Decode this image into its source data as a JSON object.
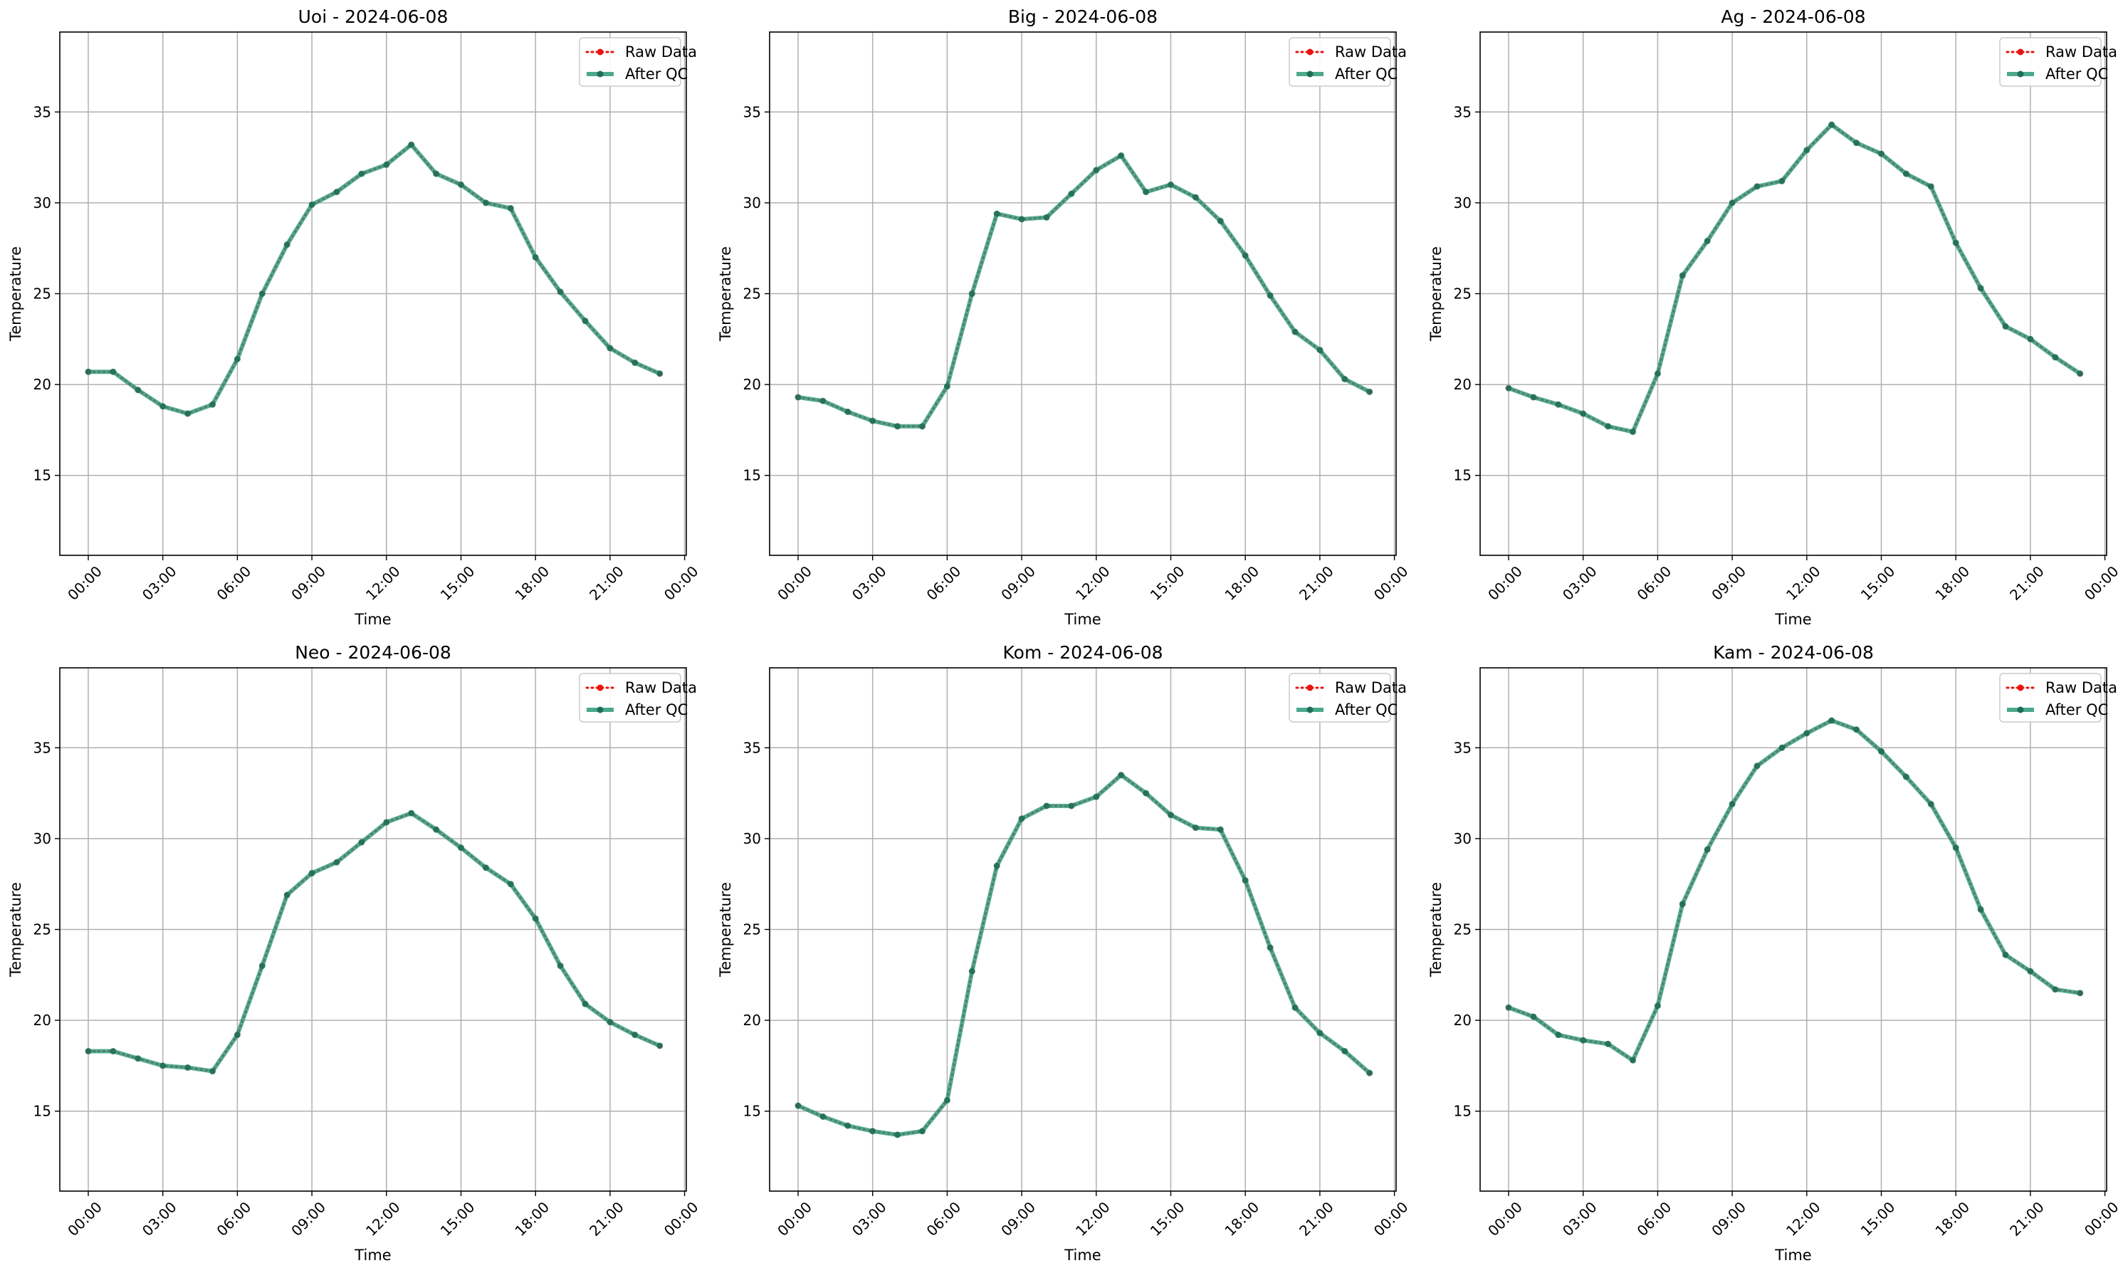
{
  "chart_data": [
    {
      "type": "line",
      "title": "Uoi - 2024-06-08",
      "xlabel": "Time",
      "ylabel": "Temperature",
      "x": [
        "00:00",
        "01:00",
        "02:00",
        "03:00",
        "04:00",
        "05:00",
        "06:00",
        "07:00",
        "08:00",
        "09:00",
        "10:00",
        "11:00",
        "12:00",
        "13:00",
        "14:00",
        "15:00",
        "16:00",
        "17:00",
        "18:00",
        "19:00",
        "20:00",
        "21:00",
        "22:00",
        "23:00"
      ],
      "series": [
        {
          "name": "Raw Data",
          "values": [
            20.7,
            20.7,
            19.7,
            18.8,
            18.4,
            18.9,
            21.4,
            25.0,
            27.7,
            29.9,
            30.6,
            31.6,
            32.1,
            33.2,
            31.6,
            31.0,
            30.0,
            29.7,
            27.0,
            25.1,
            23.5,
            22.0,
            21.2,
            20.6
          ]
        },
        {
          "name": "After QC",
          "values": [
            20.7,
            20.7,
            19.7,
            18.8,
            18.4,
            18.9,
            21.4,
            25.0,
            27.7,
            29.9,
            30.6,
            31.6,
            32.1,
            33.2,
            31.6,
            31.0,
            30.0,
            29.7,
            27.0,
            25.1,
            23.5,
            22.0,
            21.2,
            20.6
          ]
        }
      ],
      "ylim": [
        10.6,
        39.4
      ],
      "xticks": [
        "00:00",
        "03:00",
        "06:00",
        "09:00",
        "12:00",
        "15:00",
        "18:00",
        "21:00",
        "00:00"
      ],
      "yticks": [
        15,
        20,
        25,
        30,
        35
      ],
      "grid": true,
      "legend": "top-right"
    },
    {
      "type": "line",
      "title": "Big - 2024-06-08",
      "xlabel": "Time",
      "ylabel": "Temperature",
      "x": [
        "00:00",
        "01:00",
        "02:00",
        "03:00",
        "04:00",
        "05:00",
        "06:00",
        "07:00",
        "08:00",
        "09:00",
        "10:00",
        "11:00",
        "12:00",
        "13:00",
        "14:00",
        "15:00",
        "16:00",
        "17:00",
        "18:00",
        "19:00",
        "20:00",
        "21:00",
        "22:00",
        "23:00"
      ],
      "series": [
        {
          "name": "Raw Data",
          "values": [
            19.3,
            19.1,
            18.5,
            18.0,
            17.7,
            17.7,
            19.9,
            25.0,
            29.4,
            29.1,
            29.2,
            30.5,
            31.8,
            32.6,
            30.6,
            31.0,
            30.3,
            29.0,
            27.1,
            24.9,
            22.9,
            21.9,
            20.3,
            19.6
          ]
        },
        {
          "name": "After QC",
          "values": [
            19.3,
            19.1,
            18.5,
            18.0,
            17.7,
            17.7,
            19.9,
            25.0,
            29.4,
            29.1,
            29.2,
            30.5,
            31.8,
            32.6,
            30.6,
            31.0,
            30.3,
            29.0,
            27.1,
            24.9,
            22.9,
            21.9,
            20.3,
            19.6
          ]
        }
      ],
      "ylim": [
        10.6,
        39.4
      ],
      "xticks": [
        "00:00",
        "03:00",
        "06:00",
        "09:00",
        "12:00",
        "15:00",
        "18:00",
        "21:00",
        "00:00"
      ],
      "yticks": [
        15,
        20,
        25,
        30,
        35
      ],
      "grid": true,
      "legend": "top-right"
    },
    {
      "type": "line",
      "title": "Ag - 2024-06-08",
      "xlabel": "Time",
      "ylabel": "Temperature",
      "x": [
        "00:00",
        "01:00",
        "02:00",
        "03:00",
        "04:00",
        "05:00",
        "06:00",
        "07:00",
        "08:00",
        "09:00",
        "10:00",
        "11:00",
        "12:00",
        "13:00",
        "14:00",
        "15:00",
        "16:00",
        "17:00",
        "18:00",
        "19:00",
        "20:00",
        "21:00",
        "22:00",
        "23:00"
      ],
      "series": [
        {
          "name": "Raw Data",
          "values": [
            19.8,
            19.3,
            18.9,
            18.4,
            17.7,
            17.4,
            20.6,
            26.0,
            27.9,
            30.0,
            30.9,
            31.2,
            32.9,
            34.3,
            33.3,
            32.7,
            31.6,
            30.9,
            27.8,
            25.3,
            23.2,
            22.5,
            21.5,
            20.6
          ]
        },
        {
          "name": "After QC",
          "values": [
            19.8,
            19.3,
            18.9,
            18.4,
            17.7,
            17.4,
            20.6,
            26.0,
            27.9,
            30.0,
            30.9,
            31.2,
            32.9,
            34.3,
            33.3,
            32.7,
            31.6,
            30.9,
            27.8,
            25.3,
            23.2,
            22.5,
            21.5,
            20.6
          ]
        }
      ],
      "ylim": [
        10.6,
        39.4
      ],
      "xticks": [
        "00:00",
        "03:00",
        "06:00",
        "09:00",
        "12:00",
        "15:00",
        "18:00",
        "21:00",
        "00:00"
      ],
      "yticks": [
        15,
        20,
        25,
        30,
        35
      ],
      "grid": true,
      "legend": "top-right"
    },
    {
      "type": "line",
      "title": "Neo - 2024-06-08",
      "xlabel": "Time",
      "ylabel": "Temperature",
      "x": [
        "00:00",
        "01:00",
        "02:00",
        "03:00",
        "04:00",
        "05:00",
        "06:00",
        "07:00",
        "08:00",
        "09:00",
        "10:00",
        "11:00",
        "12:00",
        "13:00",
        "14:00",
        "15:00",
        "16:00",
        "17:00",
        "18:00",
        "19:00",
        "20:00",
        "21:00",
        "22:00",
        "23:00"
      ],
      "series": [
        {
          "name": "Raw Data",
          "values": [
            18.3,
            18.3,
            17.9,
            17.5,
            17.4,
            17.2,
            19.2,
            23.0,
            26.9,
            28.1,
            28.7,
            29.8,
            30.9,
            31.4,
            30.5,
            29.5,
            28.4,
            27.5,
            25.6,
            23.0,
            20.9,
            19.9,
            19.2,
            18.6
          ]
        },
        {
          "name": "After QC",
          "values": [
            18.3,
            18.3,
            17.9,
            17.5,
            17.4,
            17.2,
            19.2,
            23.0,
            26.9,
            28.1,
            28.7,
            29.8,
            30.9,
            31.4,
            30.5,
            29.5,
            28.4,
            27.5,
            25.6,
            23.0,
            20.9,
            19.9,
            19.2,
            18.6
          ]
        }
      ],
      "ylim": [
        10.6,
        39.4
      ],
      "xticks": [
        "00:00",
        "03:00",
        "06:00",
        "09:00",
        "12:00",
        "15:00",
        "18:00",
        "21:00",
        "00:00"
      ],
      "yticks": [
        15,
        20,
        25,
        30,
        35
      ],
      "grid": true,
      "legend": "top-right"
    },
    {
      "type": "line",
      "title": "Kom - 2024-06-08",
      "xlabel": "Time",
      "ylabel": "Temperature",
      "x": [
        "00:00",
        "01:00",
        "02:00",
        "03:00",
        "04:00",
        "05:00",
        "06:00",
        "07:00",
        "08:00",
        "09:00",
        "10:00",
        "11:00",
        "12:00",
        "13:00",
        "14:00",
        "15:00",
        "16:00",
        "17:00",
        "18:00",
        "19:00",
        "20:00",
        "21:00",
        "22:00",
        "23:00"
      ],
      "series": [
        {
          "name": "Raw Data",
          "values": [
            15.3,
            14.7,
            14.2,
            13.9,
            13.7,
            13.9,
            15.6,
            22.7,
            28.5,
            31.1,
            31.8,
            31.8,
            32.3,
            33.5,
            32.5,
            31.3,
            30.6,
            30.5,
            27.7,
            24.0,
            20.7,
            19.3,
            18.3,
            17.1
          ]
        },
        {
          "name": "After QC",
          "values": [
            15.3,
            14.7,
            14.2,
            13.9,
            13.7,
            13.9,
            15.6,
            22.7,
            28.5,
            31.1,
            31.8,
            31.8,
            32.3,
            33.5,
            32.5,
            31.3,
            30.6,
            30.5,
            27.7,
            24.0,
            20.7,
            19.3,
            18.3,
            17.1
          ]
        }
      ],
      "ylim": [
        10.6,
        39.4
      ],
      "xticks": [
        "00:00",
        "03:00",
        "06:00",
        "09:00",
        "12:00",
        "15:00",
        "18:00",
        "21:00",
        "00:00"
      ],
      "yticks": [
        15,
        20,
        25,
        30,
        35
      ],
      "grid": true,
      "legend": "top-right"
    },
    {
      "type": "line",
      "title": "Kam - 2024-06-08",
      "xlabel": "Time",
      "ylabel": "Temperature",
      "x": [
        "00:00",
        "01:00",
        "02:00",
        "03:00",
        "04:00",
        "05:00",
        "06:00",
        "07:00",
        "08:00",
        "09:00",
        "10:00",
        "11:00",
        "12:00",
        "13:00",
        "14:00",
        "15:00",
        "16:00",
        "17:00",
        "18:00",
        "19:00",
        "20:00",
        "21:00",
        "22:00",
        "23:00"
      ],
      "series": [
        {
          "name": "Raw Data",
          "values": [
            20.7,
            20.2,
            19.2,
            18.9,
            18.7,
            17.8,
            20.8,
            26.4,
            29.4,
            31.9,
            34.0,
            35.0,
            35.8,
            36.5,
            36.0,
            34.8,
            33.4,
            31.9,
            29.5,
            26.1,
            23.6,
            22.7,
            21.7,
            21.5
          ]
        },
        {
          "name": "After QC",
          "values": [
            20.7,
            20.2,
            19.2,
            18.9,
            18.7,
            17.8,
            20.8,
            26.4,
            29.4,
            31.9,
            34.0,
            35.0,
            35.8,
            36.5,
            36.0,
            34.8,
            33.4,
            31.9,
            29.5,
            26.1,
            23.6,
            22.7,
            21.7,
            21.5
          ]
        }
      ],
      "ylim": [
        10.6,
        39.4
      ],
      "xticks": [
        "00:00",
        "03:00",
        "06:00",
        "09:00",
        "12:00",
        "15:00",
        "18:00",
        "21:00",
        "00:00"
      ],
      "yticks": [
        15,
        20,
        25,
        30,
        35
      ],
      "grid": true,
      "legend": "top-right"
    }
  ],
  "colors": {
    "raw": "#e8140f",
    "qc_line": "#2c9a78",
    "qc_marker": "#1f6e58",
    "grid": "#b0b0b0",
    "legend_border": "#cccccc"
  }
}
